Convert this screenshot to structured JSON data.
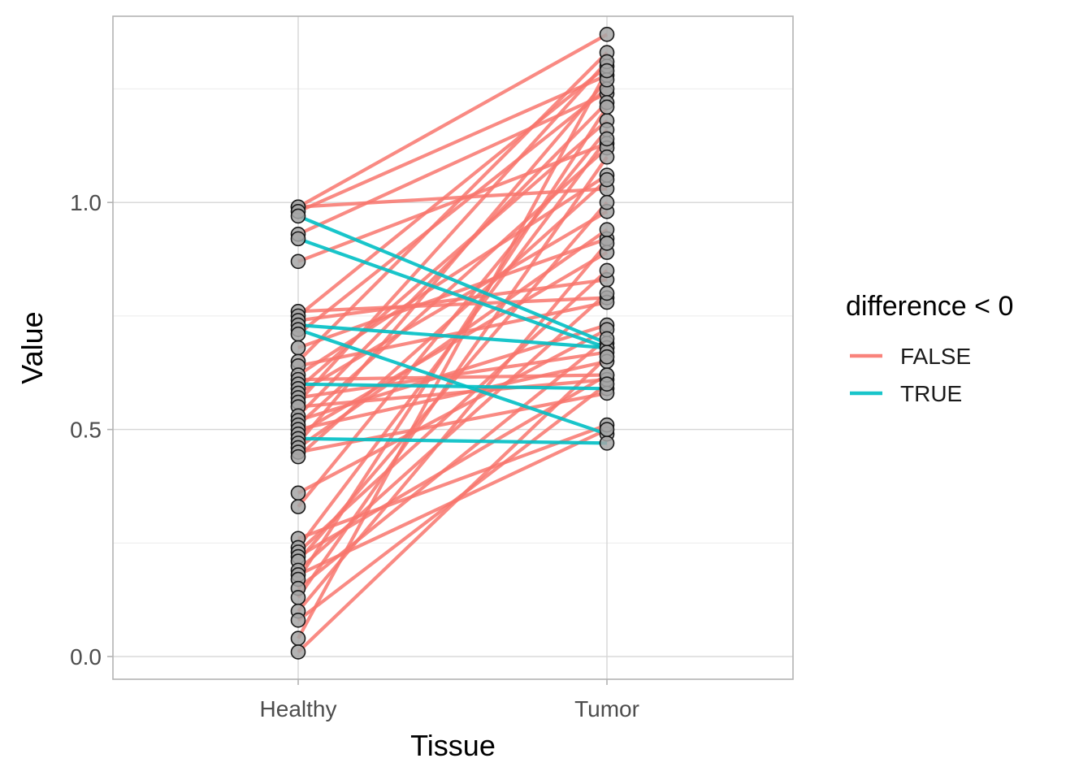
{
  "chart_data": {
    "type": "line",
    "title": "",
    "xlabel": "Tissue",
    "ylabel": "Value",
    "categories": [
      "Healthy",
      "Tumor"
    ],
    "ylim": [
      -0.05,
      1.41
    ],
    "yticks": [
      0.0,
      0.5,
      1.0
    ],
    "ytick_labels": [
      "0.0",
      "0.5",
      "1.0"
    ],
    "grid": true,
    "legend": {
      "title": "difference < 0",
      "position": "right",
      "entries": [
        {
          "label": "FALSE",
          "color": "#F8766D"
        },
        {
          "label": "TRUE",
          "color": "#00BFC4"
        }
      ]
    },
    "point_color": "#a6a6a6",
    "point_outline": "#1a1a1a",
    "pairs": [
      {
        "healthy": 0.99,
        "tumor": 1.37,
        "negative": false
      },
      {
        "healthy": 0.99,
        "tumor": 1.03,
        "negative": false
      },
      {
        "healthy": 0.98,
        "tumor": 1.28,
        "negative": false
      },
      {
        "healthy": 0.97,
        "tumor": 0.69,
        "negative": true
      },
      {
        "healthy": 0.93,
        "tumor": 1.24,
        "negative": false
      },
      {
        "healthy": 0.92,
        "tumor": 0.68,
        "negative": true
      },
      {
        "healthy": 0.87,
        "tumor": 1.13,
        "negative": false
      },
      {
        "healthy": 0.76,
        "tumor": 0.79,
        "negative": false
      },
      {
        "healthy": 0.75,
        "tumor": 1.3,
        "negative": false
      },
      {
        "healthy": 0.74,
        "tumor": 0.83,
        "negative": false
      },
      {
        "healthy": 0.73,
        "tumor": 0.68,
        "negative": true
      },
      {
        "healthy": 0.72,
        "tumor": 0.49,
        "negative": true
      },
      {
        "healthy": 0.71,
        "tumor": 1.25,
        "negative": false
      },
      {
        "healthy": 0.68,
        "tumor": 0.92,
        "negative": false
      },
      {
        "healthy": 0.65,
        "tumor": 1.33,
        "negative": false
      },
      {
        "healthy": 0.64,
        "tumor": 0.78,
        "negative": false
      },
      {
        "healthy": 0.62,
        "tumor": 1.06,
        "negative": false
      },
      {
        "healthy": 0.61,
        "tumor": 0.62,
        "negative": false
      },
      {
        "healthy": 0.6,
        "tumor": 0.59,
        "negative": true
      },
      {
        "healthy": 0.59,
        "tumor": 1.18,
        "negative": false
      },
      {
        "healthy": 0.58,
        "tumor": 0.98,
        "negative": false
      },
      {
        "healthy": 0.57,
        "tumor": 0.67,
        "negative": false
      },
      {
        "healthy": 0.56,
        "tumor": 1.31,
        "negative": false
      },
      {
        "healthy": 0.55,
        "tumor": 0.61,
        "negative": false
      },
      {
        "healthy": 0.53,
        "tumor": 1.22,
        "negative": false
      },
      {
        "healthy": 0.52,
        "tumor": 0.73,
        "negative": false
      },
      {
        "healthy": 0.51,
        "tumor": 1.12,
        "negative": false
      },
      {
        "healthy": 0.5,
        "tumor": 0.65,
        "negative": false
      },
      {
        "healthy": 0.49,
        "tumor": 0.89,
        "negative": false
      },
      {
        "healthy": 0.48,
        "tumor": 0.47,
        "negative": true
      },
      {
        "healthy": 0.47,
        "tumor": 1.27,
        "negative": false
      },
      {
        "healthy": 0.46,
        "tumor": 0.94,
        "negative": false
      },
      {
        "healthy": 0.45,
        "tumor": 0.58,
        "negative": false
      },
      {
        "healthy": 0.44,
        "tumor": 1.05,
        "negative": false
      },
      {
        "healthy": 0.36,
        "tumor": 0.72,
        "negative": false
      },
      {
        "healthy": 0.33,
        "tumor": 1.16,
        "negative": false
      },
      {
        "healthy": 0.26,
        "tumor": 0.51,
        "negative": false
      },
      {
        "healthy": 0.24,
        "tumor": 1.14,
        "negative": false
      },
      {
        "healthy": 0.23,
        "tumor": 0.85,
        "negative": false
      },
      {
        "healthy": 0.22,
        "tumor": 0.62,
        "negative": false
      },
      {
        "healthy": 0.21,
        "tumor": 1.0,
        "negative": false
      },
      {
        "healthy": 0.19,
        "tumor": 0.8,
        "negative": false
      },
      {
        "healthy": 0.18,
        "tumor": 0.5,
        "negative": false
      },
      {
        "healthy": 0.17,
        "tumor": 1.21,
        "negative": false
      },
      {
        "healthy": 0.15,
        "tumor": 0.7,
        "negative": false
      },
      {
        "healthy": 0.13,
        "tumor": 1.1,
        "negative": false
      },
      {
        "healthy": 0.1,
        "tumor": 0.91,
        "negative": false
      },
      {
        "healthy": 0.08,
        "tumor": 0.6,
        "negative": false
      },
      {
        "healthy": 0.04,
        "tumor": 1.29,
        "negative": false
      },
      {
        "healthy": 0.01,
        "tumor": 0.66,
        "negative": false
      }
    ]
  }
}
